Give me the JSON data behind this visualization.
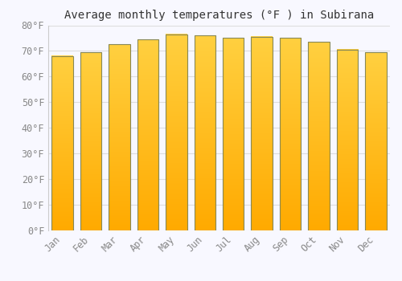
{
  "title": "Average monthly temperatures (°F ) in Subirana",
  "months": [
    "Jan",
    "Feb",
    "Mar",
    "Apr",
    "May",
    "Jun",
    "Jul",
    "Aug",
    "Sep",
    "Oct",
    "Nov",
    "Dec"
  ],
  "values": [
    68,
    69.5,
    72.5,
    74.5,
    76.5,
    76,
    75,
    75.5,
    75,
    73.5,
    70.5,
    69.5
  ],
  "bar_color_top": "#FFC020",
  "bar_color_bottom": "#FFB000",
  "bar_edge_color": "#888855",
  "background_color": "#F8F8FF",
  "grid_color": "#DDDDDD",
  "ylim": [
    0,
    80
  ],
  "yticks": [
    0,
    10,
    20,
    30,
    40,
    50,
    60,
    70,
    80
  ],
  "ytick_labels": [
    "0°F",
    "10°F",
    "20°F",
    "30°F",
    "40°F",
    "50°F",
    "60°F",
    "70°F",
    "80°F"
  ],
  "tick_color": "#888888",
  "title_color": "#333333",
  "figsize": [
    5.0,
    3.5
  ],
  "dpi": 100
}
